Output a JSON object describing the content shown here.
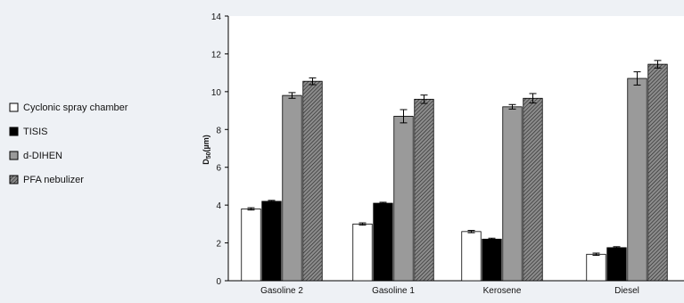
{
  "chart_data": {
    "type": "bar",
    "title": "",
    "xlabel": "",
    "ylabel_main": "D",
    "ylabel_sub": "50",
    "ylabel_unit": "(µm)",
    "ylim": [
      0,
      14
    ],
    "yticks": [
      0,
      2,
      4,
      6,
      8,
      10,
      12,
      14
    ],
    "grid": false,
    "legend_position": "left",
    "categories": [
      "Gasoline 2",
      "Gasoline 1",
      "Kerosene",
      "Diesel"
    ],
    "series": [
      {
        "name": "Cyclonic spray chamber",
        "fill": "#ffffff",
        "pattern": "none",
        "values": [
          3.8,
          3.0,
          2.6,
          1.4
        ],
        "errors": [
          0.06,
          0.06,
          0.06,
          0.06
        ]
      },
      {
        "name": "TISIS",
        "fill": "#000000",
        "pattern": "none",
        "values": [
          4.2,
          4.1,
          2.2,
          1.75
        ],
        "errors": [
          0.05,
          0.05,
          0.05,
          0.05
        ]
      },
      {
        "name": "d-DIHEN",
        "fill": "#9a9a9a",
        "pattern": "none",
        "values": [
          9.8,
          8.7,
          9.2,
          10.7
        ],
        "errors": [
          0.15,
          0.35,
          0.12,
          0.35
        ]
      },
      {
        "name": "PFA nebulizer",
        "fill": "#6a6a6a",
        "pattern": "hatch",
        "values": [
          10.55,
          9.6,
          9.65,
          11.45
        ],
        "errors": [
          0.18,
          0.22,
          0.25,
          0.2
        ]
      }
    ]
  }
}
